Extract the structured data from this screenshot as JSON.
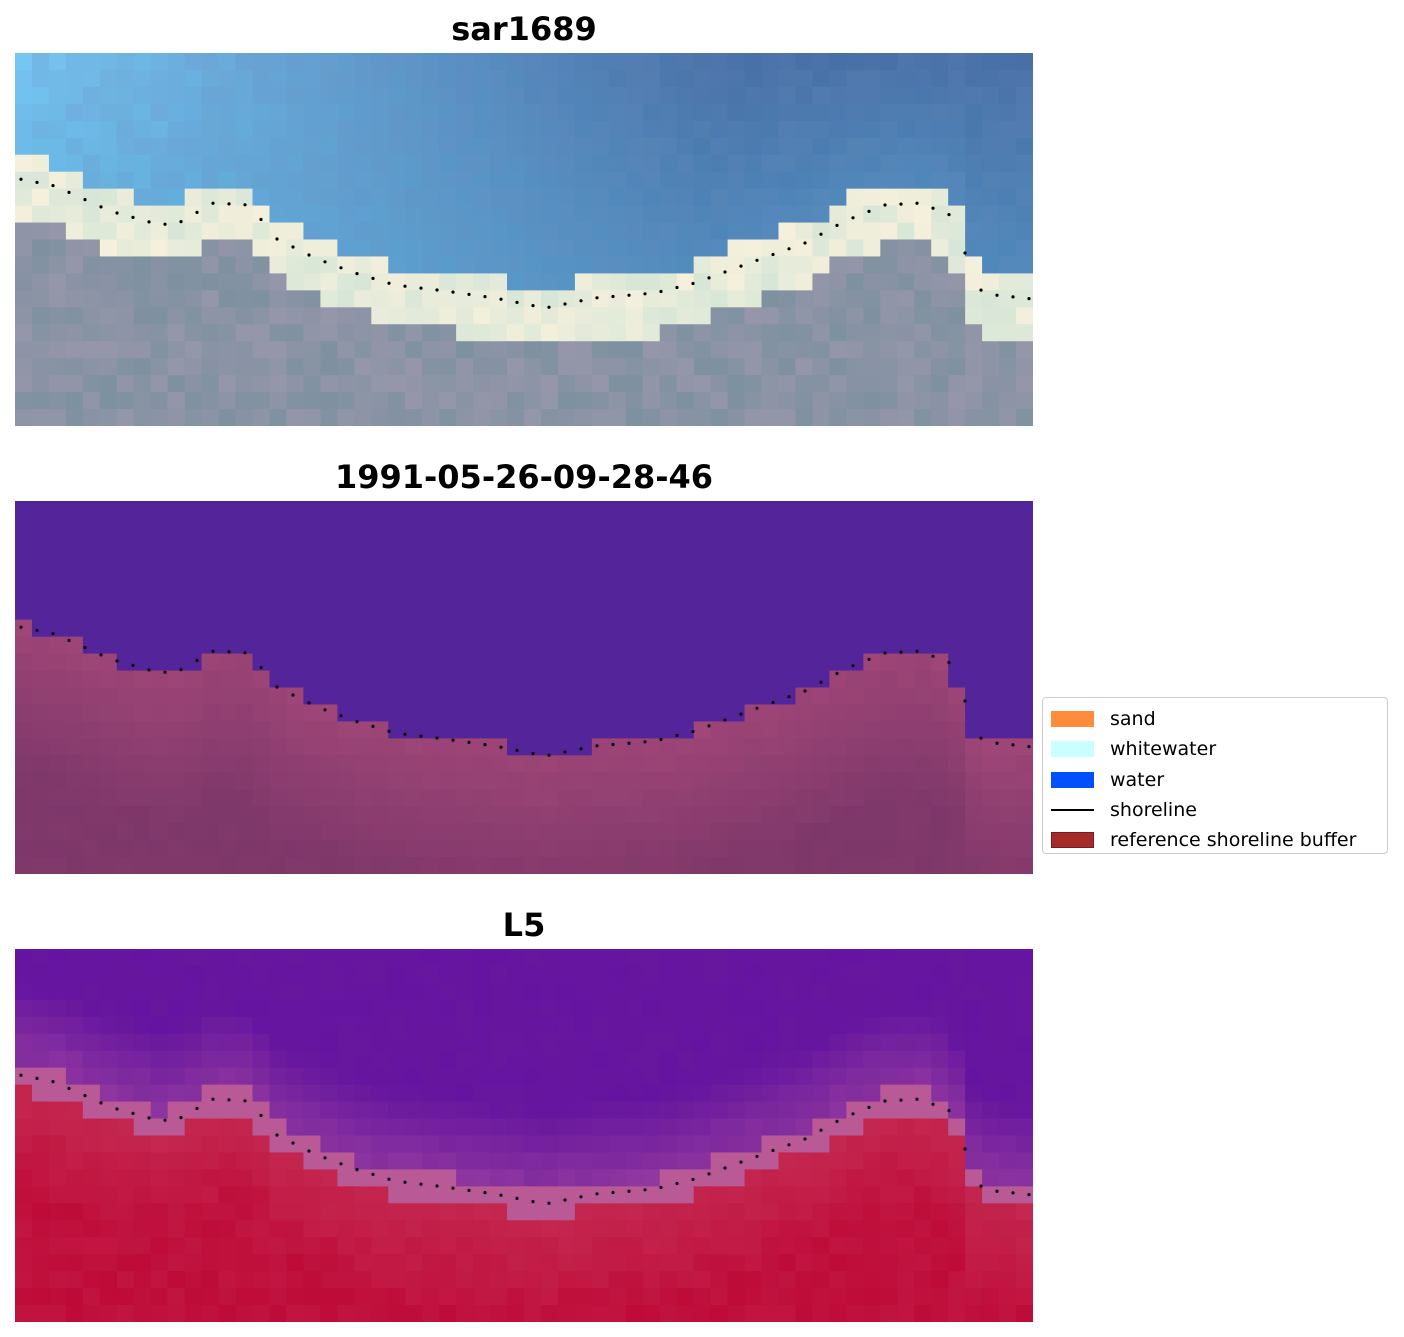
{
  "panels": [
    {
      "title": "sar1689",
      "style": "rgb"
    },
    {
      "title": "1991-05-26-09-28-46",
      "style": "classified"
    },
    {
      "title": "L5",
      "style": "index"
    }
  ],
  "legend": {
    "items": [
      {
        "label": "sand",
        "color": "#ff8c3a",
        "kind": "patch"
      },
      {
        "label": "whitewater",
        "color": "#c8ffff",
        "kind": "patch"
      },
      {
        "label": "water",
        "color": "#0050ff",
        "kind": "patch"
      },
      {
        "label": "shoreline",
        "color": "#000000",
        "kind": "line"
      },
      {
        "label": "reference shoreline buffer",
        "color": "#a52a2a",
        "kind": "patch"
      }
    ]
  },
  "colors": {
    "water_class": "#54249a",
    "buffer_overlay": "#a0406e",
    "index_low": "#5a0aa0",
    "index_high": "#c0103a"
  }
}
